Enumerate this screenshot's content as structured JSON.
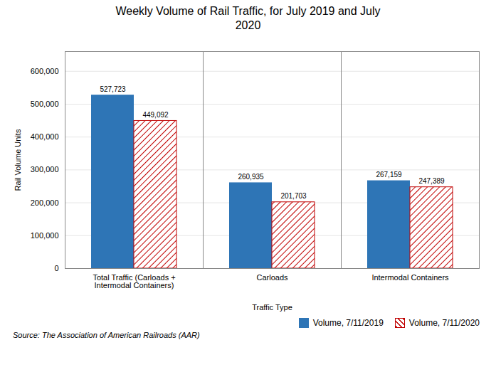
{
  "chart_data": {
    "type": "bar",
    "title": "Weekly Volume of Rail Traffic, for July 2019 and July\n2020",
    "categories": [
      "Total Traffic (Carloads +\nIntermodal Containers)",
      "Carloads",
      "Intermodal Containers"
    ],
    "series": [
      {
        "name": "Volume, 7/11/2019",
        "color": "#2E75B6",
        "values": [
          527723,
          260935,
          267159
        ],
        "value_labels": [
          "527,723",
          "260,935",
          "267,159"
        ]
      },
      {
        "name": "Volume, 7/11/2020",
        "color": "#C00000",
        "values": [
          449092,
          201703,
          247389
        ],
        "value_labels": [
          "449,092",
          "201,703",
          "247,389"
        ]
      }
    ],
    "xlabel": "Traffic Type",
    "ylabel": "Rail Volume Units",
    "ylim": [
      0,
      660000
    ],
    "yticks": [
      0,
      {
        "value": 100000,
        "label": "100,000"
      },
      {
        "value": 200000,
        "label": "200,000"
      },
      {
        "value": 300000,
        "label": "300,000"
      },
      {
        "value": 400000,
        "label": "400,000"
      },
      {
        "value": 500000,
        "label": "500,000"
      },
      {
        "value": 600000,
        "label": "600,000"
      }
    ],
    "grid": true,
    "legend": "lower right",
    "data_labels": true,
    "caption": "Source: The Association of American Railroads (AAR)"
  }
}
